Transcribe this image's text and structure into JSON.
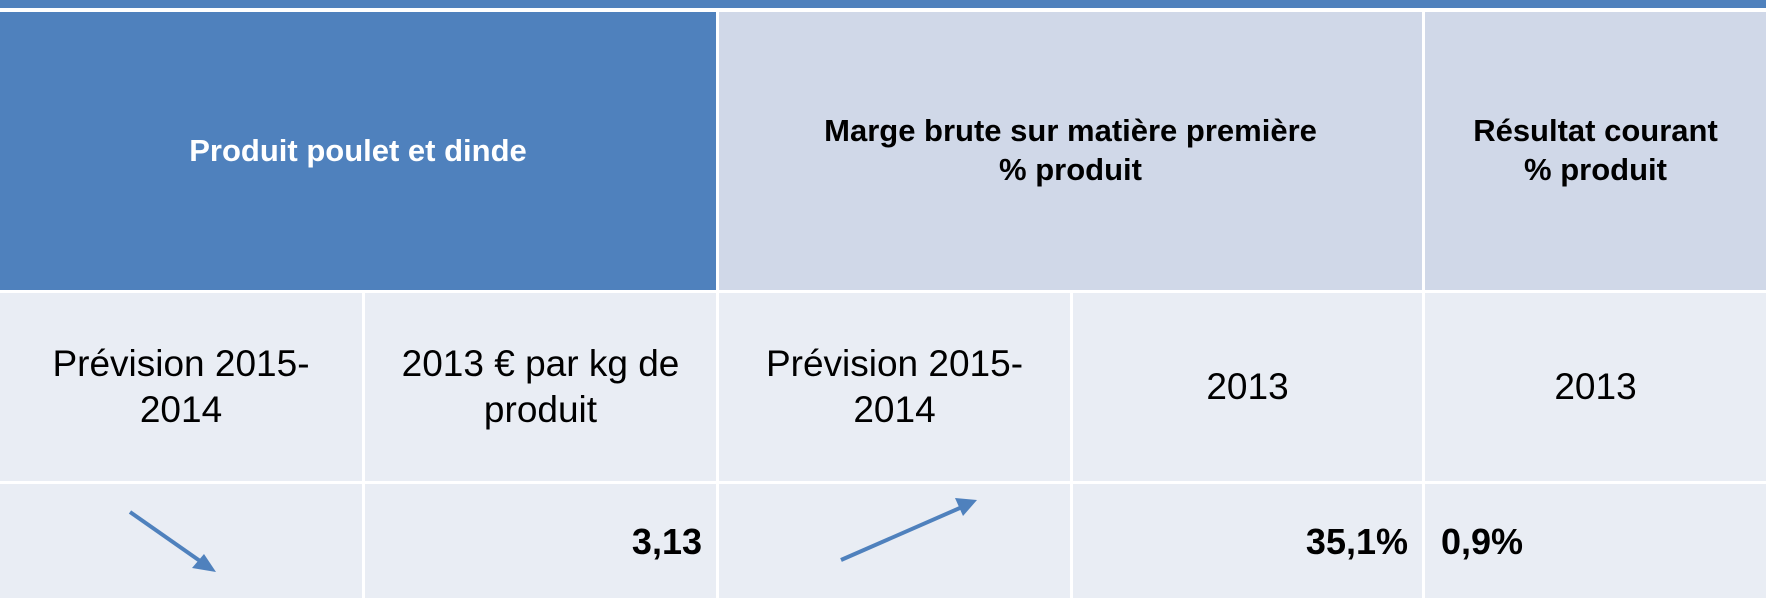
{
  "table": {
    "header": [
      "Produit poulet et dinde",
      "Marge brute sur matière première\n% produit",
      "Résultat courant\n% produit"
    ],
    "rows": [
      [
        "Prévision 2015-\n2014",
        "2013 € par kg de\nproduit",
        "Prévision 2015-\n2014",
        "2013",
        "2013"
      ],
      [
        "",
        "3,13",
        "",
        "35,1%",
        "0,9%"
      ]
    ]
  }
}
